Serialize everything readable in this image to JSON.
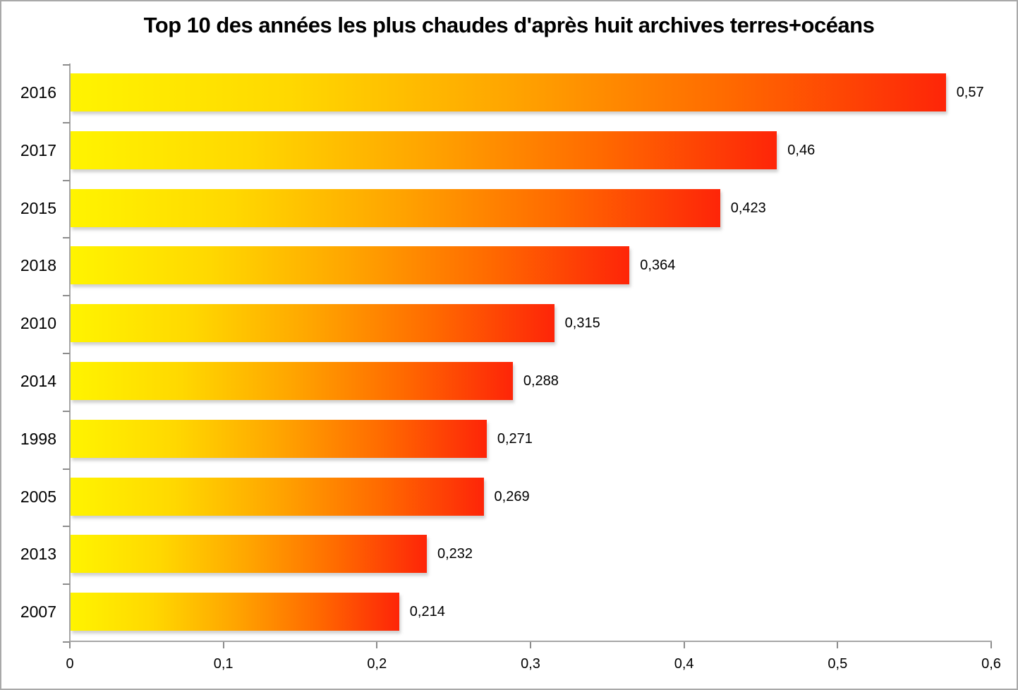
{
  "title": "Top 10 des années les plus chaudes d'après huit archives terres+océans",
  "chart_data": {
    "type": "bar",
    "orientation": "horizontal",
    "title": "Top 10 des années les plus chaudes d'après huit archives terres+océans",
    "categories": [
      "2016",
      "2017",
      "2015",
      "2018",
      "2010",
      "2014",
      "1998",
      "2005",
      "2013",
      "2007"
    ],
    "values": [
      0.57,
      0.46,
      0.423,
      0.364,
      0.315,
      0.288,
      0.271,
      0.269,
      0.232,
      0.214
    ],
    "value_labels": [
      "0,57",
      "0,46",
      "0,423",
      "0,364",
      "0,315",
      "0,288",
      "0,271",
      "0,269",
      "0,232",
      "0,214"
    ],
    "xlabel": "",
    "ylabel": "",
    "xlim": [
      0,
      0.6
    ],
    "x_ticks": [
      "0",
      "0,1",
      "0,2",
      "0,3",
      "0,4",
      "0,5",
      "0,6"
    ],
    "grid": false,
    "legend": false,
    "bar_gradient": [
      "#FFF400",
      "#FFD800",
      "#FFA500",
      "#FF6A00",
      "#FE2508"
    ],
    "axis_color": "#A6A6A6",
    "tick_color": "#8C8C8C",
    "label_color": "#000000",
    "background_color": "#FFFFFF",
    "border_color": "#A9A9A9"
  }
}
